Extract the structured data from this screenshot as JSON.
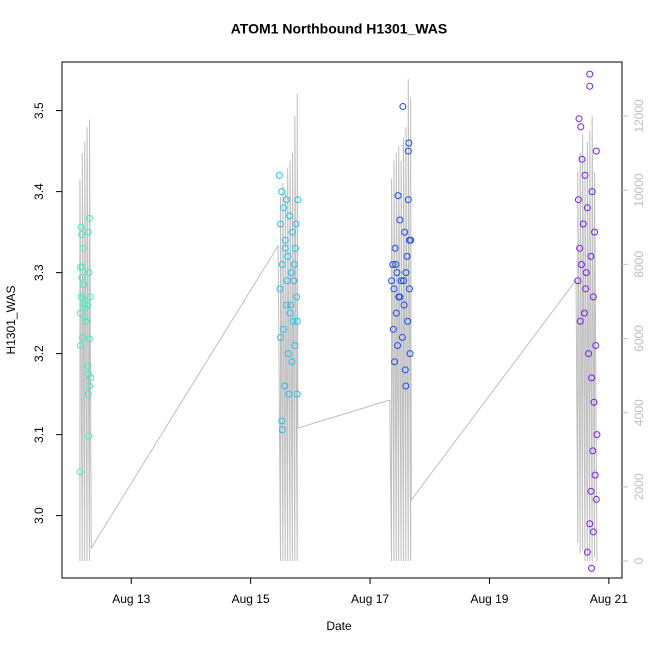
{
  "chart_data": {
    "type": "scatter",
    "title": "ATOM1 Northbound H1301_WAS",
    "x_label": "Date",
    "y_label": "H1301_WAS",
    "xlim": [
      11.84,
      21.22
    ],
    "xticks": [
      {
        "value": 13,
        "label": "Aug 13"
      },
      {
        "value": 15,
        "label": "Aug 15"
      },
      {
        "value": 17,
        "label": "Aug 17"
      },
      {
        "value": 19,
        "label": "Aug 19"
      },
      {
        "value": 21,
        "label": "Aug 21"
      }
    ],
    "ylim": [
      2.923,
      3.56
    ],
    "yticks": [
      {
        "value": 3,
        "label": "3.0"
      },
      3.1,
      3.2,
      3.3,
      3.4,
      3.5
    ],
    "y2lim": [
      -458,
      13455
    ],
    "y2ticks": [
      0,
      2000,
      4000,
      6000,
      8000,
      10000,
      12000
    ],
    "y2_color": "#bebebe",
    "series": [
      {
        "color": "#3ff0c0",
        "x": [
          12.14,
          12.16,
          12.17,
          12.19,
          12.15,
          12.18,
          12.17,
          12.2,
          12.16,
          12.19,
          12.21,
          12.23,
          12.15,
          12.22,
          12.24,
          12.18,
          12.15,
          12.3,
          12.28,
          12.29,
          12.31,
          12.27,
          12.3,
          12.27,
          12.29,
          12.32,
          12.3,
          12.28,
          12.29
        ],
        "values": [
          3.054,
          3.356,
          3.347,
          3.33,
          3.307,
          3.307,
          3.294,
          3.285,
          3.27,
          3.268,
          3.26,
          3.256,
          3.25,
          3.245,
          3.24,
          3.22,
          3.21,
          3.367,
          3.35,
          3.3,
          3.27,
          3.26,
          3.218,
          3.185,
          3.175,
          3.17,
          3.16,
          3.15,
          3.098
        ]
      },
      {
        "color": "#1fc4ee",
        "x": [
          15.48,
          15.52,
          15.6,
          15.55,
          15.65,
          15.5,
          15.7,
          15.58,
          15.75,
          15.62,
          15.53,
          15.68,
          15.72,
          15.49,
          15.77,
          15.6,
          15.66,
          15.71,
          15.55,
          15.5,
          15.74,
          15.63,
          15.69,
          15.57,
          15.78,
          15.52,
          15.53,
          15.79,
          15.76,
          15.58,
          15.73,
          15.61,
          15.67,
          15.78,
          15.64
        ],
        "values": [
          3.42,
          3.4,
          3.39,
          3.38,
          3.37,
          3.36,
          3.35,
          3.34,
          3.33,
          3.32,
          3.31,
          3.3,
          3.29,
          3.28,
          3.27,
          3.26,
          3.25,
          3.24,
          3.23,
          3.22,
          3.21,
          3.2,
          3.19,
          3.16,
          3.15,
          3.117,
          3.106,
          3.39,
          3.36,
          3.33,
          3.31,
          3.29,
          3.26,
          3.24,
          3.15
        ]
      },
      {
        "color": "#1a4ef5",
        "x": [
          17.55,
          17.65,
          17.64,
          17.47,
          17.64,
          17.5,
          17.58,
          17.68,
          17.42,
          17.62,
          17.38,
          17.45,
          17.6,
          17.36,
          17.52,
          17.4,
          17.66,
          17.48,
          17.57,
          17.44,
          17.63,
          17.39,
          17.54,
          17.46,
          17.67,
          17.41,
          17.59,
          17.6,
          17.66,
          17.43,
          17.56,
          17.5
        ],
        "values": [
          3.505,
          3.46,
          3.45,
          3.395,
          3.39,
          3.365,
          3.35,
          3.34,
          3.33,
          3.32,
          3.31,
          3.3,
          3.3,
          3.29,
          3.29,
          3.28,
          3.28,
          3.27,
          3.26,
          3.25,
          3.24,
          3.23,
          3.22,
          3.21,
          3.2,
          3.19,
          3.18,
          3.16,
          3.34,
          3.31,
          3.29,
          3.27
        ]
      },
      {
        "color": "#7a1ff0",
        "x": [
          20.68,
          20.68,
          20.5,
          20.53,
          20.79,
          20.55,
          20.6,
          20.72,
          20.49,
          20.64,
          20.57,
          20.76,
          20.51,
          20.7,
          20.62,
          20.48,
          20.74,
          20.59,
          20.52,
          20.78,
          20.66,
          20.71,
          20.75,
          20.8,
          20.73,
          20.77,
          20.7,
          20.79,
          20.68,
          20.74,
          20.64,
          20.71,
          20.54,
          20.61
        ],
        "values": [
          3.545,
          3.53,
          3.49,
          3.48,
          3.45,
          3.44,
          3.42,
          3.4,
          3.39,
          3.38,
          3.36,
          3.35,
          3.33,
          3.32,
          3.3,
          3.29,
          3.27,
          3.25,
          3.24,
          3.21,
          3.2,
          3.17,
          3.14,
          3.1,
          3.08,
          3.05,
          3.03,
          3.02,
          2.99,
          2.98,
          2.955,
          2.935,
          3.31,
          3.28
        ]
      },
      {
        "type": "line",
        "axis": "y2",
        "color": "#bebebe",
        "x": [
          12.14,
          12.14,
          12.18,
          12.18,
          12.22,
          12.22,
          12.26,
          12.26,
          12.3,
          12.3,
          12.33,
          15.46,
          15.5,
          15.5,
          15.54,
          15.54,
          15.58,
          15.58,
          15.62,
          15.62,
          15.66,
          15.66,
          15.7,
          15.7,
          15.74,
          15.74,
          15.78,
          15.78,
          15.79,
          17.33,
          17.36,
          17.36,
          17.4,
          17.4,
          17.44,
          17.44,
          17.48,
          17.48,
          17.52,
          17.52,
          17.56,
          17.56,
          17.6,
          17.6,
          17.64,
          17.64,
          17.68,
          17.68,
          17.69,
          20.45,
          20.48,
          20.48,
          20.52,
          20.52,
          20.56,
          20.56,
          20.6,
          20.6,
          20.64,
          20.64,
          20.68,
          20.68,
          20.72,
          20.72,
          20.76,
          20.76,
          20.8
        ],
        "values": [
          0,
          10300,
          0,
          11000,
          0,
          11300,
          0,
          11700,
          0,
          11900,
          350,
          8500,
          0,
          9800,
          0,
          10200,
          0,
          9900,
          0,
          10600,
          0,
          10800,
          0,
          11000,
          0,
          12000,
          0,
          12600,
          3585,
          4340,
          0,
          10300,
          0,
          10800,
          0,
          11000,
          0,
          11200,
          0,
          10800,
          0,
          11400,
          0,
          11700,
          0,
          13000,
          0,
          12500,
          1644,
          7574,
          500,
          10500,
          200,
          11000,
          300,
          11500,
          0,
          10800,
          0,
          11300,
          0,
          11600,
          0,
          12000,
          100,
          10500,
          0
        ]
      }
    ]
  }
}
